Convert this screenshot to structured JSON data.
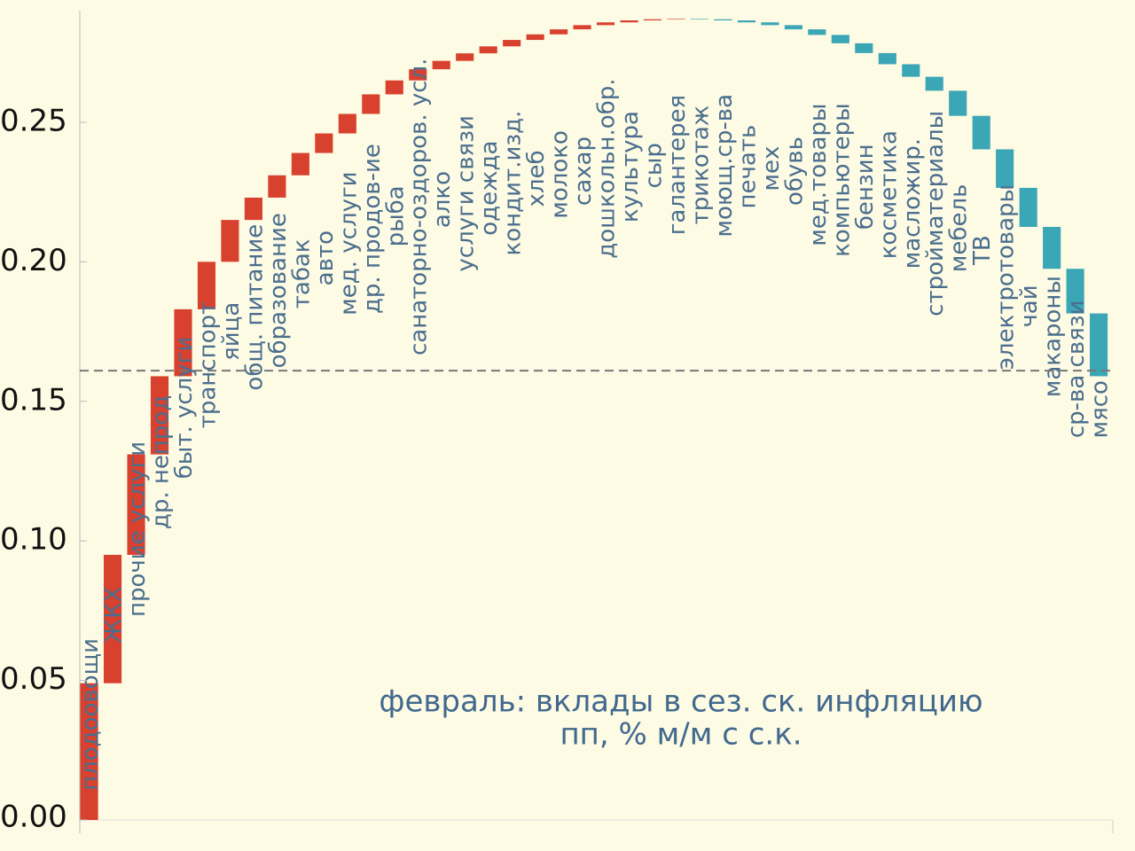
{
  "chart_data": {
    "type": "waterfall",
    "title": "февраль: вклады в сез. ск. инфляцию",
    "subtitle": "пп, % м/м с с.к.",
    "categories": [
      "плодоовощи",
      "ЖКХ",
      "прочие услуги",
      "др. непрод",
      "быт. услуги",
      "транспорт",
      "яйца",
      "общ. питание",
      "образование",
      "табак",
      "авто",
      "мед. услуги",
      "др. продов-ие",
      "рыба",
      "санаторно-оздоров. усл.",
      "алко",
      "услуги связи",
      "одежда",
      "кондит.изд.",
      "хлеб",
      "молоко",
      "сахар",
      "дошкольн.обр.",
      "культура",
      "сыр",
      "галантерея",
      "трикотаж",
      "моющ.ср-ва",
      "печать",
      "мех",
      "обувь",
      "мед.товары",
      "компьютеры",
      "бензин",
      "косметика",
      "масложир.",
      "стройматериалы",
      "мебель",
      "ТВ",
      "электротовары",
      "чай",
      "макароны",
      "ср-ва связи",
      "мясо"
    ],
    "values": [
      0.049,
      0.046,
      0.036,
      0.028,
      0.024,
      0.017,
      0.015,
      0.008,
      0.008,
      0.008,
      0.007,
      0.007,
      0.007,
      0.005,
      0.004,
      0.003,
      0.0027,
      0.0025,
      0.0023,
      0.002,
      0.0018,
      0.0015,
      0.001,
      0.0007,
      0.0004,
      0.0002,
      -0.0002,
      -0.0004,
      -0.0007,
      -0.001,
      -0.0015,
      -0.002,
      -0.003,
      -0.0035,
      -0.004,
      -0.0045,
      -0.005,
      -0.009,
      -0.012,
      -0.0138,
      -0.014,
      -0.015,
      -0.016,
      -0.0225
    ],
    "increase_color": "#d9412f",
    "decrease_color": "#3ba6b6",
    "reference_line": 0.161,
    "ylim": [
      0,
      0.29
    ],
    "yticks": [
      {
        "value": 0,
        "label": "0.00"
      },
      {
        "value": 0.05,
        "label": "0.05"
      },
      {
        "value": 0.1,
        "label": "0.10"
      },
      {
        "value": 0.15,
        "label": "0.15"
      },
      {
        "value": 0.2,
        "label": "0.20"
      },
      {
        "value": 0.25,
        "label": "0.25"
      }
    ]
  }
}
